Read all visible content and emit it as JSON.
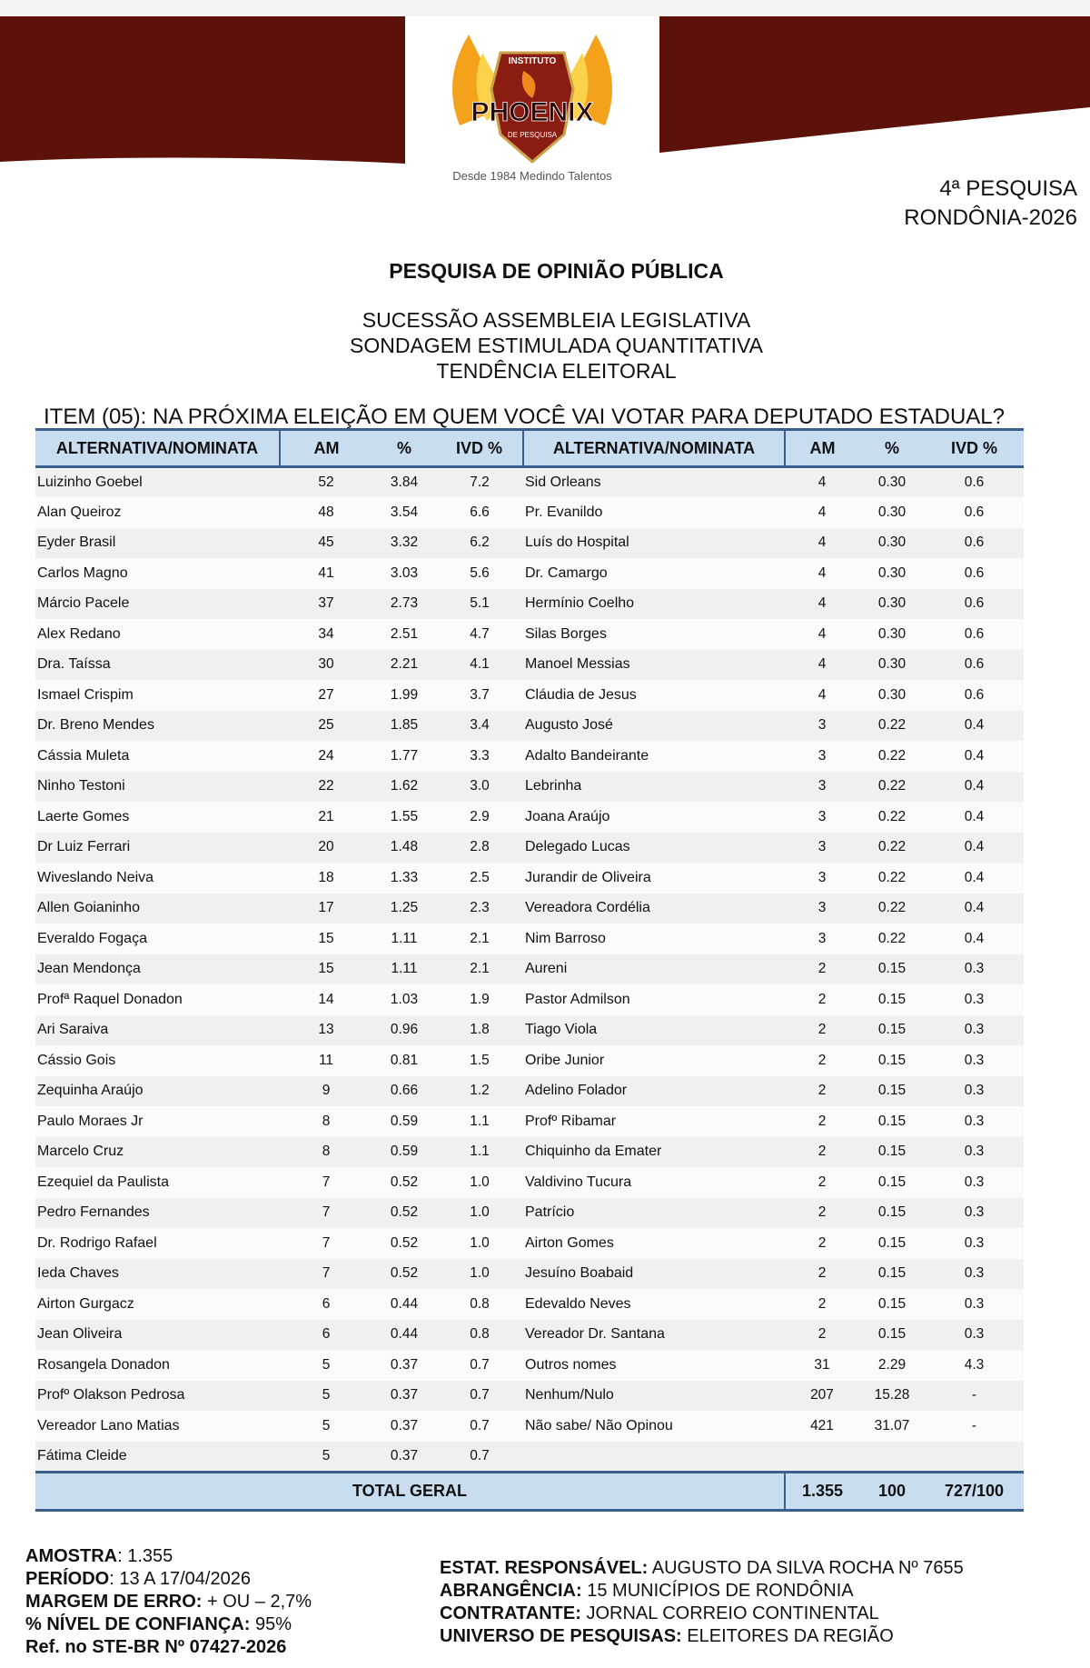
{
  "colors": {
    "band": "#5c1208",
    "header_bg": "#c9ddf1",
    "header_border": "#3a5f8f"
  },
  "logo": {
    "top": "INSTITUTO",
    "name": "PHOENIX",
    "sub": "DE PESQUISA",
    "tagline": "Desde 1984 Medindo Talentos"
  },
  "survey": {
    "number": "4ª PESQUISA",
    "region": "RONDÔNIA-2026"
  },
  "title": "PESQUISA DE OPINIÃO PÚBLICA",
  "subtitles": [
    "SUCESSÃO ASSEMBLEIA LEGISLATIVA",
    "SONDAGEM ESTIMULADA QUANTITATIVA",
    "TENDÊNCIA ELEITORAL"
  ],
  "question": "ITEM (05): NA PRÓXIMA ELEIÇÃO EM QUEM VOCÊ VAI VOTAR PARA DEPUTADO ESTADUAL?",
  "table": {
    "headers": [
      "ALTERNATIVA/NOMINATA",
      "AM",
      "%",
      "IVD %",
      "ALTERNATIVA/NOMINATA",
      "AM",
      "%",
      "IVD %"
    ],
    "left": [
      [
        "Luizinho Goebel",
        "52",
        "3.84",
        "7.2"
      ],
      [
        "Alan Queiroz",
        "48",
        "3.54",
        "6.6"
      ],
      [
        "Eyder Brasil",
        "45",
        "3.32",
        "6.2"
      ],
      [
        "Carlos Magno",
        "41",
        "3.03",
        "5.6"
      ],
      [
        "Márcio Pacele",
        "37",
        "2.73",
        "5.1"
      ],
      [
        "Alex Redano",
        "34",
        "2.51",
        "4.7"
      ],
      [
        "Dra. Taíssa",
        "30",
        "2.21",
        "4.1"
      ],
      [
        "Ismael Crispim",
        "27",
        "1.99",
        "3.7"
      ],
      [
        "Dr. Breno Mendes",
        "25",
        "1.85",
        "3.4"
      ],
      [
        "Cássia Muleta",
        "24",
        "1.77",
        "3.3"
      ],
      [
        "Ninho Testoni",
        "22",
        "1.62",
        "3.0"
      ],
      [
        "Laerte Gomes",
        "21",
        "1.55",
        "2.9"
      ],
      [
        "Dr Luiz Ferrari",
        "20",
        "1.48",
        "2.8"
      ],
      [
        "Wiveslando Neiva",
        "18",
        "1.33",
        "2.5"
      ],
      [
        "Allen Goianinho",
        "17",
        "1.25",
        "2.3"
      ],
      [
        "Everaldo Fogaça",
        "15",
        "1.11",
        "2.1"
      ],
      [
        "Jean Mendonça",
        "15",
        "1.11",
        "2.1"
      ],
      [
        "Profª Raquel Donadon",
        "14",
        "1.03",
        "1.9"
      ],
      [
        "Ari Saraiva",
        "13",
        "0.96",
        "1.8"
      ],
      [
        "Cássio Gois",
        "11",
        "0.81",
        "1.5"
      ],
      [
        "Zequinha Araújo",
        "9",
        "0.66",
        "1.2"
      ],
      [
        "Paulo Moraes Jr",
        "8",
        "0.59",
        "1.1"
      ],
      [
        "Marcelo Cruz",
        "8",
        "0.59",
        "1.1"
      ],
      [
        "Ezequiel da Paulista",
        "7",
        "0.52",
        "1.0"
      ],
      [
        "Pedro Fernandes",
        "7",
        "0.52",
        "1.0"
      ],
      [
        "Dr. Rodrigo Rafael",
        "7",
        "0.52",
        "1.0"
      ],
      [
        "Ieda Chaves",
        "7",
        "0.52",
        "1.0"
      ],
      [
        "Airton Gurgacz",
        "6",
        "0.44",
        "0.8"
      ],
      [
        "Jean Oliveira",
        "6",
        "0.44",
        "0.8"
      ],
      [
        "Rosangela Donadon",
        "5",
        "0.37",
        "0.7"
      ],
      [
        "Profº Olakson Pedrosa",
        "5",
        "0.37",
        "0.7"
      ],
      [
        "Vereador Lano Matias",
        "5",
        "0.37",
        "0.7"
      ],
      [
        "Fátima Cleide",
        "5",
        "0.37",
        "0.7"
      ]
    ],
    "right": [
      [
        "Sid Orleans",
        "4",
        "0.30",
        "0.6"
      ],
      [
        "Pr. Evanildo",
        "4",
        "0.30",
        "0.6"
      ],
      [
        "Luís do Hospital",
        "4",
        "0.30",
        "0.6"
      ],
      [
        "Dr. Camargo",
        "4",
        "0.30",
        "0.6"
      ],
      [
        "Hermínio Coelho",
        "4",
        "0.30",
        "0.6"
      ],
      [
        "Silas Borges",
        "4",
        "0.30",
        "0.6"
      ],
      [
        "Manoel Messias",
        "4",
        "0.30",
        "0.6"
      ],
      [
        "Cláudia de Jesus",
        "4",
        "0.30",
        "0.6"
      ],
      [
        "Augusto José",
        "3",
        "0.22",
        "0.4"
      ],
      [
        "Adalto Bandeirante",
        "3",
        "0.22",
        "0.4"
      ],
      [
        "Lebrinha",
        "3",
        "0.22",
        "0.4"
      ],
      [
        "Joana Araújo",
        "3",
        "0.22",
        "0.4"
      ],
      [
        "Delegado Lucas",
        "3",
        "0.22",
        "0.4"
      ],
      [
        "Jurandir de Oliveira",
        "3",
        "0.22",
        "0.4"
      ],
      [
        "Vereadora Cordélia",
        "3",
        "0.22",
        "0.4"
      ],
      [
        "Nim Barroso",
        "3",
        "0.22",
        "0.4"
      ],
      [
        "Aureni",
        "2",
        "0.15",
        "0.3"
      ],
      [
        "Pastor Admilson",
        "2",
        "0.15",
        "0.3"
      ],
      [
        "Tiago Viola",
        "2",
        "0.15",
        "0.3"
      ],
      [
        "Oribe Junior",
        "2",
        "0.15",
        "0.3"
      ],
      [
        "Adelino Folador",
        "2",
        "0.15",
        "0.3"
      ],
      [
        "Profº Ribamar",
        "2",
        "0.15",
        "0.3"
      ],
      [
        "Chiquinho da Emater",
        "2",
        "0.15",
        "0.3"
      ],
      [
        "Valdivino Tucura",
        "2",
        "0.15",
        "0.3"
      ],
      [
        "Patrício",
        "2",
        "0.15",
        "0.3"
      ],
      [
        "Airton Gomes",
        "2",
        "0.15",
        "0.3"
      ],
      [
        "Jesuíno Boabaid",
        "2",
        "0.15",
        "0.3"
      ],
      [
        "Edevaldo Neves",
        "2",
        "0.15",
        "0.3"
      ],
      [
        "Vereador Dr. Santana",
        "2",
        "0.15",
        "0.3"
      ],
      [
        "Outros nomes",
        "31",
        "2.29",
        "4.3"
      ],
      [
        "Nenhum/Nulo",
        "207",
        "15.28",
        "-"
      ],
      [
        "Não sabe/ Não Opinou",
        "421",
        "31.07",
        "-"
      ]
    ],
    "total": {
      "label": "TOTAL GERAL",
      "am": "1.355",
      "pct": "100",
      "ivd": "727/100"
    }
  },
  "footer_left": [
    {
      "label": "AMOSTRA",
      "sep": ": ",
      "value": "1.355"
    },
    {
      "label": "PERÍODO",
      "sep": ": ",
      "value": "13 A 17/04/2026"
    },
    {
      "label": "MARGEM DE ERRO:",
      "sep": " ",
      "value": "+ OU – 2,7%"
    },
    {
      "label": "% NÍVEL DE CONFIANÇA:",
      "sep": " ",
      "value": "95%"
    },
    {
      "label": "Ref. no STE-BR Nº 07427-2026",
      "sep": "",
      "value": ""
    }
  ],
  "footer_right": [
    {
      "label": "ESTAT. RESPONSÁVEL:",
      "sep": " ",
      "value": "AUGUSTO DA SILVA ROCHA Nº 7655"
    },
    {
      "label": "ABRANGÊNCIA:",
      "sep": " ",
      "value": "15 MUNICÍPIOS DE RONDÔNIA"
    },
    {
      "label": "CONTRATANTE:",
      "sep": " ",
      "value": "JORNAL CORREIO CONTINENTAL"
    },
    {
      "label": "UNIVERSO DE PESQUISAS:",
      "sep": " ",
      "value": "ELEITORES DA REGIÃO"
    }
  ]
}
